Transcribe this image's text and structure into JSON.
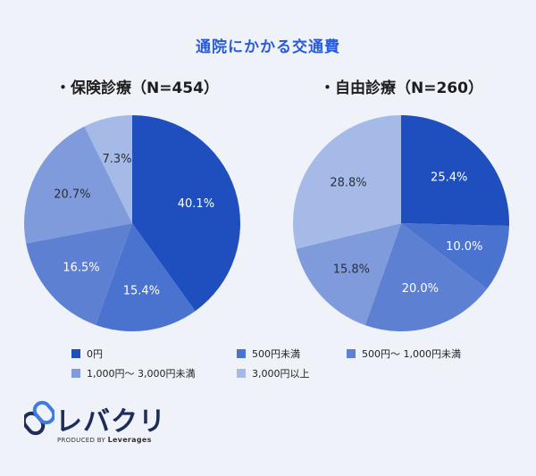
{
  "chart_title": "通院にかかる交通費",
  "legend": [
    {
      "label": "0円",
      "color": "#1f4fbf"
    },
    {
      "label": "500円未満",
      "color": "#4a73cf"
    },
    {
      "label": "500円〜 1,000円未満",
      "color": "#5e80d3"
    },
    {
      "label": "1,000円〜 3,000円未満",
      "color": "#7f9bdc"
    },
    {
      "label": "3,000円以上",
      "color": "#a5bae6"
    }
  ],
  "chart_data": [
    {
      "type": "pie",
      "title": "・保険診療（N=454）",
      "unit": "%",
      "categories": [
        "0円",
        "500円未満",
        "500円〜 1,000円未満",
        "1,000円〜 3,000円未満",
        "3,000円以上"
      ],
      "values": [
        40.1,
        15.4,
        16.5,
        20.7,
        7.3
      ],
      "labels": [
        "40.1%",
        "15.4%",
        "16.5%",
        "20.7%",
        "7.3%"
      ],
      "colors": [
        "#1f4fbf",
        "#4a73cf",
        "#5e80d3",
        "#7f9bdc",
        "#a5bae6"
      ]
    },
    {
      "type": "pie",
      "title": "・自由診療（N=260）",
      "unit": "%",
      "categories": [
        "0円",
        "500円未満",
        "500円〜 1,000円未満",
        "1,000円〜 3,000円未満",
        "3,000円以上"
      ],
      "values": [
        25.4,
        10.0,
        20.0,
        15.8,
        28.8
      ],
      "labels": [
        "25.4%",
        "10.0%",
        "20.0%",
        "15.8%",
        "28.8%"
      ],
      "colors": [
        "#1f4fbf",
        "#4a73cf",
        "#5e80d3",
        "#7f9bdc",
        "#a5bae6"
      ]
    }
  ],
  "brand": {
    "name": "レバクリ",
    "produced_by": "PRODUCED BY",
    "company": "Leverages",
    "icon": "link-logo-icon",
    "color": "#1c2d5a"
  }
}
